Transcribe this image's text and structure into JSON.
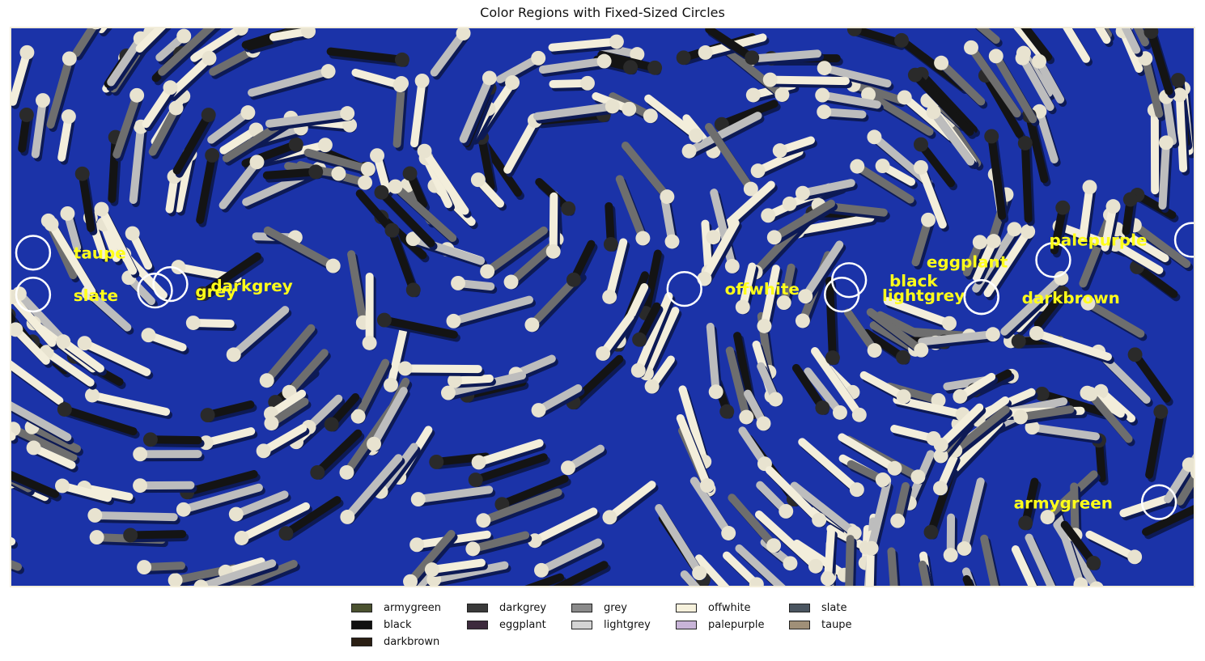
{
  "title": "Color Regions with Fixed-Sized Circles",
  "colors": {
    "background": "#1b33a8",
    "stick_light": "#f3eedb",
    "stick_dark": "#141414",
    "stick_mid": "#6e6e6e",
    "circle": "#ffffff",
    "label": "#ffff1a"
  },
  "regions": [
    {
      "name": "taupe"
    },
    {
      "name": "slate"
    },
    {
      "name": "grey"
    },
    {
      "name": "darkgrey"
    },
    {
      "name": "offwhite"
    },
    {
      "name": "black"
    },
    {
      "name": "lightgrey"
    },
    {
      "name": "eggplant"
    },
    {
      "name": "palepurple"
    },
    {
      "name": "darkbrown"
    },
    {
      "name": "armygreen"
    }
  ],
  "legend": [
    {
      "label": "armygreen",
      "color": "#4b5230"
    },
    {
      "label": "black",
      "color": "#111111"
    },
    {
      "label": "darkbrown",
      "color": "#2b1f14"
    },
    {
      "label": "darkgrey",
      "color": "#3a3a3a"
    },
    {
      "label": "eggplant",
      "color": "#3d2b3d"
    },
    {
      "label": "grey",
      "color": "#8a8a8a"
    },
    {
      "label": "lightgrey",
      "color": "#d3d3d3"
    },
    {
      "label": "offwhite",
      "color": "#f6f1dc"
    },
    {
      "label": "palepurple",
      "color": "#c8b4d8"
    },
    {
      "label": "slate",
      "color": "#4a5560"
    },
    {
      "label": "taupe",
      "color": "#a09078"
    }
  ]
}
